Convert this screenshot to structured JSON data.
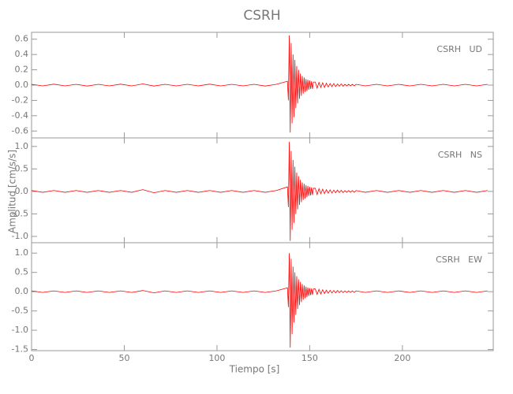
{
  "figure": {
    "title": "CSRH",
    "y_label": "Amplitud [cm/s/s]"
  },
  "chart_data": [
    {
      "type": "line",
      "annotation": "CSRH   UD",
      "x": [
        0,
        6,
        12,
        18,
        24,
        30,
        36,
        42,
        48,
        54,
        60,
        66,
        72,
        78,
        84,
        90,
        96,
        102,
        108,
        114,
        120,
        126,
        132,
        138,
        138.5,
        139,
        139.5,
        140,
        140.5,
        141,
        141.5,
        142,
        142.5,
        143,
        143.5,
        144,
        144.5,
        145,
        145.5,
        146,
        146.5,
        147,
        147.5,
        148,
        148.5,
        149,
        149.5,
        150,
        150.5,
        151,
        151.5,
        152,
        153,
        154,
        155,
        156,
        157,
        158,
        159,
        160,
        161,
        162,
        163,
        164,
        165,
        166,
        167,
        168,
        169,
        170,
        171,
        172,
        173,
        174,
        175,
        180,
        186,
        192,
        198,
        204,
        210,
        216,
        222,
        228,
        234,
        240,
        246
      ],
      "series": [
        {
          "name": "UD",
          "color": "#ff0000",
          "values": [
            0.01,
            -0.01,
            0.012,
            -0.01,
            0.01,
            -0.012,
            0.01,
            -0.01,
            0.012,
            -0.01,
            0.015,
            -0.012,
            0.01,
            -0.01,
            0.01,
            -0.01,
            0.012,
            -0.01,
            0.01,
            -0.01,
            0.01,
            -0.012,
            0.01,
            0.05,
            -0.2,
            0.65,
            -0.62,
            0.55,
            -0.5,
            0.4,
            -0.42,
            0.33,
            -0.3,
            0.25,
            -0.24,
            0.2,
            -0.18,
            0.15,
            -0.14,
            0.12,
            -0.11,
            0.1,
            -0.09,
            0.08,
            -0.08,
            0.07,
            -0.06,
            0.06,
            -0.05,
            0.05,
            -0.05,
            0.04,
            0.04,
            -0.04,
            0.035,
            -0.03,
            0.03,
            -0.03,
            0.025,
            -0.025,
            0.02,
            -0.02,
            0.02,
            -0.02,
            0.015,
            -0.015,
            0.015,
            -0.015,
            0.01,
            -0.01,
            0.01,
            -0.01,
            0.01,
            -0.01,
            0.01,
            -0.01,
            0.01,
            -0.01,
            0.01,
            -0.01,
            0.01,
            -0.01,
            0.01,
            -0.01,
            0.01,
            -0.01,
            0.01
          ]
        }
      ],
      "xlim": [
        0,
        249
      ],
      "xticks": [
        0,
        50,
        100,
        150,
        200
      ],
      "ylim": [
        -0.69,
        0.69
      ],
      "yticks": [
        -0.6,
        -0.4,
        -0.2,
        {
          "value": 0,
          "label": "0.0"
        },
        0.2,
        0.4,
        0.6
      ]
    },
    {
      "type": "line",
      "annotation": "CSRH   NS",
      "x": [
        0,
        6,
        12,
        18,
        24,
        30,
        36,
        42,
        48,
        54,
        60,
        66,
        72,
        78,
        84,
        90,
        96,
        102,
        108,
        114,
        120,
        126,
        132,
        138,
        138.5,
        139,
        139.5,
        140,
        140.5,
        141,
        141.5,
        142,
        142.5,
        143,
        143.5,
        144,
        144.5,
        145,
        145.5,
        146,
        146.5,
        147,
        147.5,
        148,
        148.5,
        149,
        149.5,
        150,
        150.5,
        151,
        151.5,
        152,
        153,
        154,
        155,
        156,
        157,
        158,
        159,
        160,
        161,
        162,
        163,
        164,
        165,
        166,
        167,
        168,
        169,
        170,
        171,
        172,
        173,
        174,
        175,
        180,
        186,
        192,
        198,
        204,
        210,
        216,
        222,
        228,
        234,
        240,
        246
      ],
      "series": [
        {
          "name": "NS",
          "color": "#ff0000",
          "values": [
            0.02,
            -0.02,
            0.02,
            -0.02,
            0.02,
            -0.02,
            0.02,
            -0.02,
            0.02,
            -0.02,
            0.04,
            -0.03,
            0.02,
            -0.02,
            0.02,
            -0.02,
            0.02,
            -0.02,
            0.02,
            -0.02,
            0.02,
            -0.02,
            0.02,
            0.1,
            -0.35,
            1.1,
            -1.1,
            0.9,
            -0.85,
            0.7,
            -0.7,
            0.55,
            -0.5,
            0.42,
            -0.4,
            0.34,
            -0.3,
            0.26,
            -0.24,
            0.2,
            -0.19,
            0.17,
            -0.16,
            0.14,
            -0.13,
            0.12,
            -0.1,
            0.1,
            -0.09,
            0.09,
            -0.08,
            0.07,
            0.07,
            -0.07,
            0.06,
            -0.05,
            0.05,
            -0.05,
            0.04,
            -0.04,
            0.035,
            -0.035,
            0.03,
            -0.03,
            0.03,
            -0.025,
            0.025,
            -0.025,
            0.02,
            -0.02,
            0.02,
            -0.02,
            0.02,
            -0.02,
            0.02,
            -0.02,
            0.02,
            -0.02,
            0.02,
            -0.02,
            0.02,
            -0.02,
            0.02,
            -0.02,
            0.02,
            -0.02,
            0.02
          ]
        }
      ],
      "xlim": [
        0,
        249
      ],
      "xticks": [
        0,
        50,
        100,
        150,
        200
      ],
      "ylim": [
        -1.14,
        1.19
      ],
      "yticks": [
        {
          "value": -1,
          "label": "-1.0"
        },
        -0.5,
        {
          "value": 0,
          "label": "0.0"
        },
        0.5,
        {
          "value": 1,
          "label": "1.0"
        }
      ]
    },
    {
      "type": "line",
      "annotation": "CSRH   EW",
      "x_label": "Tiempo [s]",
      "x": [
        0,
        6,
        12,
        18,
        24,
        30,
        36,
        42,
        48,
        54,
        60,
        66,
        72,
        78,
        84,
        90,
        96,
        102,
        108,
        114,
        120,
        126,
        132,
        138,
        138.5,
        139,
        139.5,
        140,
        140.5,
        141,
        141.5,
        142,
        142.5,
        143,
        143.5,
        144,
        144.5,
        145,
        145.5,
        146,
        146.5,
        147,
        147.5,
        148,
        148.5,
        149,
        149.5,
        150,
        150.5,
        151,
        151.5,
        152,
        153,
        154,
        155,
        156,
        157,
        158,
        159,
        160,
        161,
        162,
        163,
        164,
        165,
        166,
        167,
        168,
        169,
        170,
        171,
        172,
        173,
        174,
        175,
        180,
        186,
        192,
        198,
        204,
        210,
        216,
        222,
        228,
        234,
        240,
        246
      ],
      "series": [
        {
          "name": "EW",
          "color": "#ff0000",
          "values": [
            0.02,
            -0.02,
            0.02,
            -0.02,
            0.02,
            -0.02,
            0.02,
            -0.02,
            0.02,
            -0.02,
            0.03,
            -0.03,
            0.02,
            -0.02,
            0.02,
            -0.02,
            0.02,
            -0.02,
            0.02,
            -0.02,
            0.02,
            -0.02,
            0.02,
            0.1,
            -0.4,
            1.0,
            -1.45,
            0.85,
            -1.1,
            0.65,
            -0.8,
            0.5,
            -0.6,
            0.4,
            -0.45,
            0.32,
            -0.35,
            0.25,
            -0.27,
            0.2,
            -0.21,
            0.16,
            -0.17,
            0.13,
            -0.14,
            0.11,
            -0.11,
            0.09,
            -0.09,
            0.08,
            -0.08,
            0.07,
            0.07,
            -0.07,
            0.06,
            -0.06,
            0.05,
            -0.05,
            0.04,
            -0.04,
            0.035,
            -0.035,
            0.03,
            -0.03,
            0.03,
            -0.025,
            0.025,
            -0.025,
            0.02,
            -0.02,
            0.02,
            -0.02,
            0.02,
            -0.02,
            0.02,
            -0.02,
            0.02,
            -0.02,
            0.02,
            -0.02,
            0.02,
            -0.02,
            0.02,
            -0.02,
            0.02,
            -0.02,
            0.02
          ]
        }
      ],
      "xlim": [
        0,
        249
      ],
      "xticks": [
        0,
        50,
        100,
        150,
        200
      ],
      "ylim": [
        -1.53,
        1.27
      ],
      "yticks": [
        {
          "value": -1.5,
          "label": "-1.5"
        },
        {
          "value": -1,
          "label": "-1.0"
        },
        -0.5,
        {
          "value": 0,
          "label": "0.0"
        },
        0.5,
        {
          "value": 1,
          "label": "1.0"
        }
      ]
    }
  ]
}
